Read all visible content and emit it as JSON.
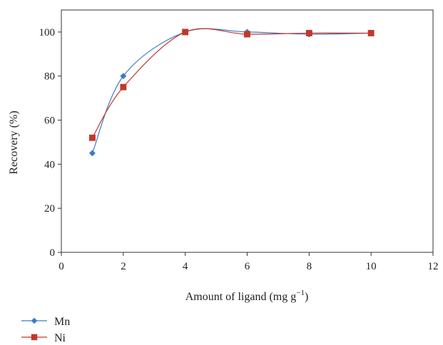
{
  "chart_data": {
    "type": "line",
    "xlabel": "Amount of ligand (mg g",
    "xlabel_sup": "−1",
    "xlabel_close": ")",
    "ylabel": "Recovery (%)",
    "xlim": [
      0,
      12
    ],
    "ylim": [
      0,
      110
    ],
    "xticks": [
      "0",
      "2",
      "4",
      "6",
      "8",
      "10",
      "12"
    ],
    "yticks": [
      "0",
      "20",
      "40",
      "60",
      "80",
      "100"
    ],
    "grid": false,
    "legend_position": "bottom-left",
    "series": [
      {
        "name": "Mn",
        "color": "#3a7cc4",
        "marker": "diamond",
        "x": [
          1,
          2,
          4,
          6,
          8,
          10
        ],
        "y": [
          45,
          80,
          100,
          100,
          99,
          99.5
        ]
      },
      {
        "name": "Ni",
        "color": "#c0392b",
        "marker": "square",
        "x": [
          1,
          2,
          4,
          6,
          8,
          10
        ],
        "y": [
          52,
          75,
          100,
          99,
          99.5,
          99.5
        ]
      }
    ]
  }
}
